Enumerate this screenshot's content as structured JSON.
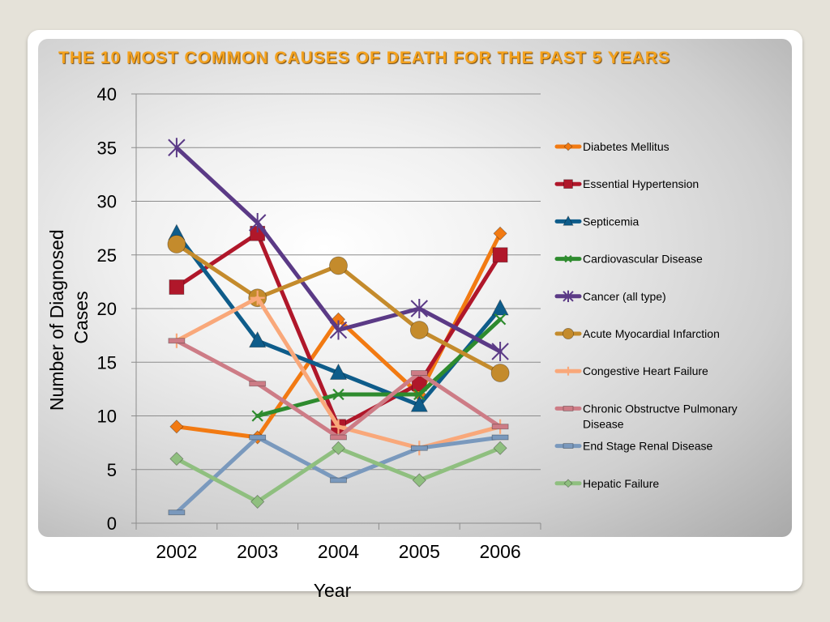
{
  "slide": {
    "title": "THE 10 MOST COMMON CAUSES OF DEATH FOR THE PAST 5 YEARS",
    "title_color": "#f4a21e"
  },
  "chart_data": {
    "type": "line",
    "title": "",
    "xlabel": "Year",
    "ylabel": "Number of Diagnosed Cases",
    "categories": [
      "2002",
      "2003",
      "2004",
      "2005",
      "2006"
    ],
    "ylim": [
      0,
      40
    ],
    "yticks": [
      0,
      5,
      10,
      15,
      20,
      25,
      30,
      35,
      40
    ],
    "grid": "horizontal",
    "legend_position": "right",
    "series": [
      {
        "name": "Diabetes Mellitus",
        "color": "#f27a12",
        "marker": "diamond",
        "values": [
          9,
          8,
          19,
          12,
          27
        ]
      },
      {
        "name": "Essential Hypertension",
        "color": "#b0172a",
        "marker": "square",
        "values": [
          22,
          27,
          9,
          13,
          25
        ]
      },
      {
        "name": "Septicemia",
        "color": "#0e5c8a",
        "marker": "triangle",
        "values": [
          27,
          17,
          14,
          11,
          20
        ]
      },
      {
        "name": "Cardiovascular Disease",
        "color": "#2e8b2e",
        "marker": "x",
        "values": [
          null,
          10,
          12,
          12,
          19
        ]
      },
      {
        "name": "Cancer (all type)",
        "color": "#5b3a86",
        "marker": "star",
        "values": [
          35,
          28,
          18,
          20,
          16
        ]
      },
      {
        "name": "Acute Myocardial Infarction",
        "color": "#c48b2c",
        "marker": "circle",
        "values": [
          26,
          21,
          24,
          18,
          14
        ]
      },
      {
        "name": "Congestive Heart Failure",
        "color": "#f9a87a",
        "marker": "plus",
        "values": [
          17,
          21,
          9,
          7,
          9
        ]
      },
      {
        "name": "Chronic Obstructve Pulmonary Disease",
        "color": "#cd7c86",
        "marker": "dash",
        "values": [
          17,
          13,
          8,
          14,
          9
        ]
      },
      {
        "name": "End Stage Renal Disease",
        "color": "#7a99bd",
        "marker": "dash",
        "values": [
          1,
          8,
          4,
          7,
          8
        ]
      },
      {
        "name": "Hepatic Failure",
        "color": "#8fbf7f",
        "marker": "diamond",
        "values": [
          6,
          2,
          7,
          4,
          7
        ]
      }
    ]
  }
}
